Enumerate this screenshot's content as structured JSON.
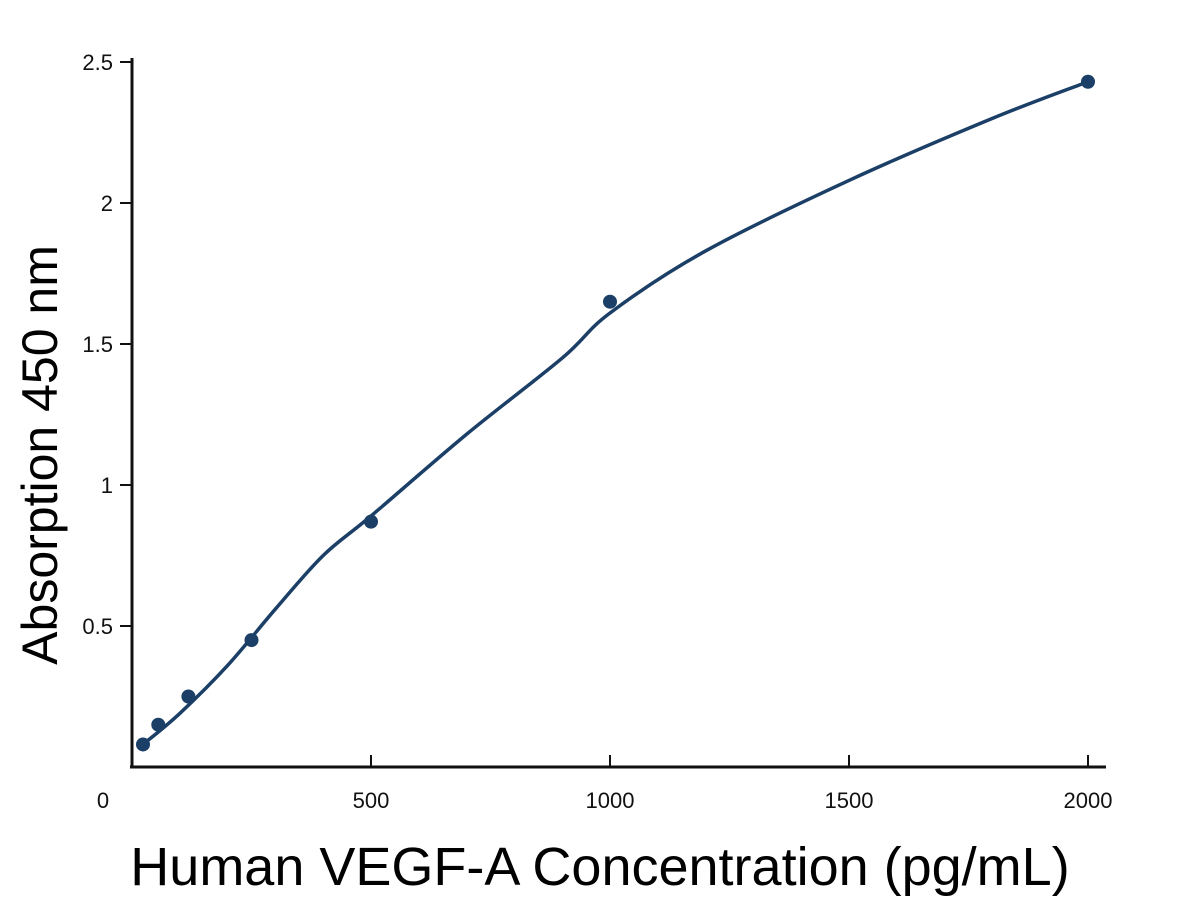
{
  "chart_data": {
    "type": "line",
    "title": "",
    "xlabel": "Human VEGF-A Concentration (pg/mL)",
    "ylabel": "Absorption 450 nm",
    "xlim": [
      0,
      2000
    ],
    "ylim": [
      0,
      2.5
    ],
    "x_ticks": [
      0,
      500,
      1000,
      1500,
      2000
    ],
    "x_tick_labels": [
      "0",
      "500",
      "1000",
      "1500",
      "2000"
    ],
    "y_ticks": [
      0.5,
      1,
      1.5,
      2,
      2.5
    ],
    "y_tick_labels": [
      "0.5",
      "1",
      "1.5",
      "2",
      "2.5"
    ],
    "grid": false,
    "series": [
      {
        "points": [
          {
            "x": 23,
            "y": 0.08
          },
          {
            "x": 55,
            "y": 0.15
          },
          {
            "x": 118,
            "y": 0.25
          },
          {
            "x": 250,
            "y": 0.45
          },
          {
            "x": 500,
            "y": 0.87
          },
          {
            "x": 1000,
            "y": 1.65
          },
          {
            "x": 2000,
            "y": 2.43
          }
        ],
        "fit_curve": [
          {
            "x": 23,
            "y": 0.08
          },
          {
            "x": 100,
            "y": 0.19
          },
          {
            "x": 200,
            "y": 0.36
          },
          {
            "x": 300,
            "y": 0.56
          },
          {
            "x": 400,
            "y": 0.75
          },
          {
            "x": 500,
            "y": 0.89
          },
          {
            "x": 700,
            "y": 1.18
          },
          {
            "x": 900,
            "y": 1.45
          },
          {
            "x": 1000,
            "y": 1.61
          },
          {
            "x": 1200,
            "y": 1.83
          },
          {
            "x": 1500,
            "y": 2.08
          },
          {
            "x": 1800,
            "y": 2.3
          },
          {
            "x": 2000,
            "y": 2.43
          }
        ],
        "color": "#1b3f66"
      }
    ]
  }
}
